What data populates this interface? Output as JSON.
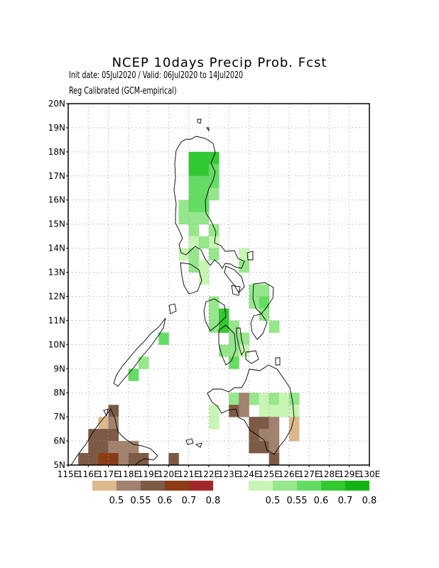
{
  "title": "NCEP 10days Precip Prob. Fcst",
  "subtitle_dates": "Init date: 05Jul2020 / Valid: 06Jul2020 to 14Jul2020",
  "subtitle_method": "Reg Calibrated (GCM-empirical)",
  "lat_labels": [
    "20N",
    "19N",
    "18N",
    "17N",
    "16N",
    "15N",
    "14N",
    "13N",
    "12N",
    "11N",
    "10N",
    "9N",
    "8N",
    "7N",
    "6N",
    "5N"
  ],
  "lon_labels": [
    "115E",
    "116E",
    "117E",
    "118E",
    "119E",
    "120E",
    "121E",
    "122E",
    "123E",
    "124E",
    "125E",
    "126E",
    "127E",
    "128E",
    "129E",
    "130E"
  ],
  "legend_dry": {
    "labels": [
      "0.5",
      "0.55",
      "0.6",
      "0.7",
      "0.8"
    ],
    "colors": [
      "#dcb98c",
      "#a0826e",
      "#7d5a46",
      "#8c3c14",
      "#a02828"
    ]
  },
  "legend_wet": {
    "labels": [
      "0.5",
      "0.55",
      "0.6",
      "0.7",
      "0.8"
    ],
    "colors": [
      "#c8f5b4",
      "#96e68c",
      "#64dc64",
      "#32c832",
      "#14b414"
    ]
  },
  "map_data": {
    "lat_range": [
      5,
      20
    ],
    "lon_range": [
      115,
      130
    ],
    "grid_res_deg": 0.5,
    "cells": [
      {
        "lon": 121.25,
        "lat": 17.75,
        "level": "wet4"
      },
      {
        "lon": 121.75,
        "lat": 17.75,
        "level": "wet4"
      },
      {
        "lon": 122.25,
        "lat": 17.75,
        "level": "wet4"
      },
      {
        "lon": 121.25,
        "lat": 17.25,
        "level": "wet4"
      },
      {
        "lon": 121.75,
        "lat": 17.25,
        "level": "wet4"
      },
      {
        "lon": 122.25,
        "lat": 17.25,
        "level": "wet3"
      },
      {
        "lon": 121.25,
        "lat": 16.75,
        "level": "wet3"
      },
      {
        "lon": 121.75,
        "lat": 16.75,
        "level": "wet3"
      },
      {
        "lon": 122.25,
        "lat": 16.75,
        "level": "wet3"
      },
      {
        "lon": 121.25,
        "lat": 16.25,
        "level": "wet3"
      },
      {
        "lon": 121.75,
        "lat": 16.25,
        "level": "wet3"
      },
      {
        "lon": 122.25,
        "lat": 16.25,
        "level": "wet2"
      },
      {
        "lon": 120.75,
        "lat": 15.75,
        "level": "wet2"
      },
      {
        "lon": 121.25,
        "lat": 15.75,
        "level": "wet3"
      },
      {
        "lon": 121.75,
        "lat": 15.75,
        "level": "wet3"
      },
      {
        "lon": 120.75,
        "lat": 15.25,
        "level": "wet2"
      },
      {
        "lon": 121.25,
        "lat": 15.25,
        "level": "wet2"
      },
      {
        "lon": 121.75,
        "lat": 15.25,
        "level": "wet2"
      },
      {
        "lon": 121.25,
        "lat": 14.75,
        "level": "wet2"
      },
      {
        "lon": 122.25,
        "lat": 14.75,
        "level": "wet2"
      },
      {
        "lon": 121.25,
        "lat": 14.25,
        "level": "wet1"
      },
      {
        "lon": 121.75,
        "lat": 14.25,
        "level": "wet2"
      },
      {
        "lon": 122.25,
        "lat": 14.25,
        "level": "wet1"
      },
      {
        "lon": 120.75,
        "lat": 13.75,
        "level": "wet1"
      },
      {
        "lon": 121.25,
        "lat": 13.75,
        "level": "wet2"
      },
      {
        "lon": 122.25,
        "lat": 13.75,
        "level": "wet2"
      },
      {
        "lon": 123.75,
        "lat": 13.75,
        "level": "wet1"
      },
      {
        "lon": 121.25,
        "lat": 13.25,
        "level": "wet2"
      },
      {
        "lon": 121.75,
        "lat": 13.25,
        "level": "wet1"
      },
      {
        "lon": 123.75,
        "lat": 13.25,
        "level": "wet2"
      },
      {
        "lon": 121.75,
        "lat": 12.75,
        "level": "wet1"
      },
      {
        "lon": 124.25,
        "lat": 12.25,
        "level": "wet2"
      },
      {
        "lon": 124.75,
        "lat": 12.25,
        "level": "wet2"
      },
      {
        "lon": 122.25,
        "lat": 11.75,
        "level": "wet2"
      },
      {
        "lon": 124.25,
        "lat": 11.75,
        "level": "wet2"
      },
      {
        "lon": 124.75,
        "lat": 11.75,
        "level": "wet3"
      },
      {
        "lon": 122.25,
        "lat": 11.25,
        "level": "wet2"
      },
      {
        "lon": 122.75,
        "lat": 11.25,
        "level": "wet4"
      },
      {
        "lon": 124.75,
        "lat": 11.25,
        "level": "wet2"
      },
      {
        "lon": 122.25,
        "lat": 10.75,
        "level": "wet2"
      },
      {
        "lon": 122.75,
        "lat": 10.75,
        "level": "wet4"
      },
      {
        "lon": 123.25,
        "lat": 10.75,
        "level": "wet2"
      },
      {
        "lon": 125.25,
        "lat": 10.75,
        "level": "wet2"
      },
      {
        "lon": 119.75,
        "lat": 10.25,
        "level": "wet3"
      },
      {
        "lon": 123.25,
        "lat": 10.25,
        "level": "wet2"
      },
      {
        "lon": 123.75,
        "lat": 10.25,
        "level": "wet2"
      },
      {
        "lon": 122.75,
        "lat": 9.75,
        "level": "wet2"
      },
      {
        "lon": 123.25,
        "lat": 9.75,
        "level": "wet2"
      },
      {
        "lon": 123.75,
        "lat": 9.75,
        "level": "wet1"
      },
      {
        "lon": 118.75,
        "lat": 9.25,
        "level": "wet2"
      },
      {
        "lon": 123.25,
        "lat": 9.25,
        "level": "wet3"
      },
      {
        "lon": 118.25,
        "lat": 8.75,
        "level": "wet3"
      },
      {
        "lon": 123.25,
        "lat": 7.75,
        "level": "wet2"
      },
      {
        "lon": 124.25,
        "lat": 7.75,
        "level": "wet2"
      },
      {
        "lon": 124.75,
        "lat": 7.75,
        "level": "wet1"
      },
      {
        "lon": 125.25,
        "lat": 7.75,
        "level": "wet2"
      },
      {
        "lon": 125.75,
        "lat": 7.75,
        "level": "wet1"
      },
      {
        "lon": 126.25,
        "lat": 7.75,
        "level": "wet2"
      },
      {
        "lon": 122.25,
        "lat": 7.25,
        "level": "wet1"
      },
      {
        "lon": 124.75,
        "lat": 7.25,
        "level": "wet1"
      },
      {
        "lon": 125.25,
        "lat": 7.25,
        "level": "wet1"
      },
      {
        "lon": 125.75,
        "lat": 7.25,
        "level": "wet1"
      },
      {
        "lon": 126.25,
        "lat": 7.25,
        "level": "wet1"
      },
      {
        "lon": 122.25,
        "lat": 6.75,
        "level": "wet1"
      },
      {
        "lon": 123.75,
        "lat": 7.75,
        "level": "dry2"
      },
      {
        "lon": 123.25,
        "lat": 7.25,
        "level": "dry3"
      },
      {
        "lon": 123.75,
        "lat": 7.25,
        "level": "dry2"
      },
      {
        "lon": 124.25,
        "lat": 6.75,
        "level": "dry3"
      },
      {
        "lon": 124.75,
        "lat": 6.75,
        "level": "dry3"
      },
      {
        "lon": 125.25,
        "lat": 6.75,
        "level": "dry2"
      },
      {
        "lon": 126.25,
        "lat": 6.75,
        "level": "dry1"
      },
      {
        "lon": 124.25,
        "lat": 6.25,
        "level": "dry3"
      },
      {
        "lon": 124.75,
        "lat": 6.25,
        "level": "dry2"
      },
      {
        "lon": 125.25,
        "lat": 6.25,
        "level": "dry2"
      },
      {
        "lon": 126.25,
        "lat": 6.25,
        "level": "dry1"
      },
      {
        "lon": 124.25,
        "lat": 5.75,
        "level": "dry3"
      },
      {
        "lon": 124.75,
        "lat": 5.75,
        "level": "dry3"
      },
      {
        "lon": 125.25,
        "lat": 5.75,
        "level": "dry2"
      },
      {
        "lon": 125.25,
        "lat": 5.25,
        "level": "dry3"
      },
      {
        "lon": 117.25,
        "lat": 7.25,
        "level": "dry3"
      },
      {
        "lon": 116.75,
        "lat": 6.75,
        "level": "dry1"
      },
      {
        "lon": 117.25,
        "lat": 6.75,
        "level": "dry2"
      },
      {
        "lon": 116.25,
        "lat": 6.25,
        "level": "dry3"
      },
      {
        "lon": 116.75,
        "lat": 6.25,
        "level": "dry3"
      },
      {
        "lon": 117.25,
        "lat": 6.25,
        "level": "dry3"
      },
      {
        "lon": 116.25,
        "lat": 5.75,
        "level": "dry3"
      },
      {
        "lon": 116.75,
        "lat": 5.75,
        "level": "dry3"
      },
      {
        "lon": 117.25,
        "lat": 5.75,
        "level": "dry2"
      },
      {
        "lon": 117.75,
        "lat": 5.75,
        "level": "dry2"
      },
      {
        "lon": 118.25,
        "lat": 5.75,
        "level": "dry2"
      },
      {
        "lon": 115.75,
        "lat": 5.25,
        "level": "dry3"
      },
      {
        "lon": 116.25,
        "lat": 5.25,
        "level": "dry3"
      },
      {
        "lon": 116.75,
        "lat": 5.25,
        "level": "dry4"
      },
      {
        "lon": 117.25,
        "lat": 5.25,
        "level": "dry4"
      },
      {
        "lon": 117.75,
        "lat": 5.25,
        "level": "dry2"
      },
      {
        "lon": 118.25,
        "lat": 5.25,
        "level": "dry3"
      },
      {
        "lon": 118.75,
        "lat": 5.25,
        "level": "dry3"
      },
      {
        "lon": 120.25,
        "lat": 5.25,
        "level": "dry3"
      }
    ]
  }
}
